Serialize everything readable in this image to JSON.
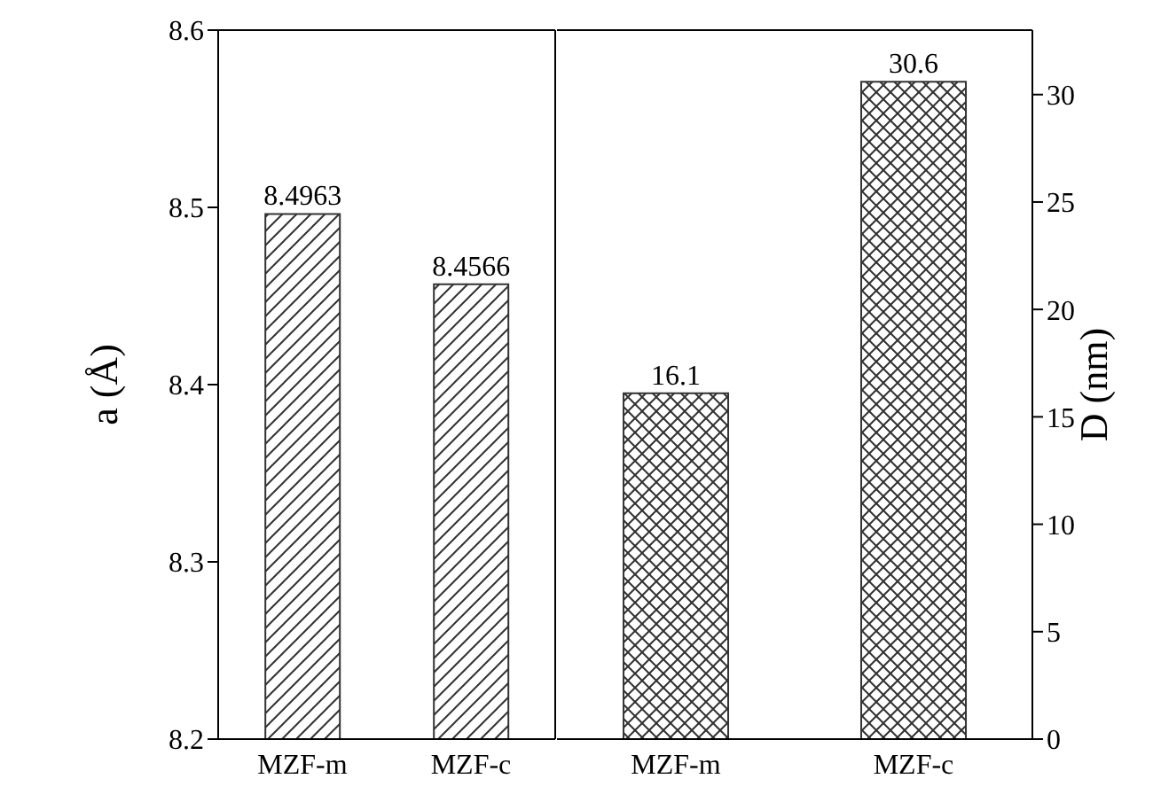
{
  "chart_data": [
    {
      "type": "bar",
      "ylabel": "a (Å)",
      "categories": [
        "MZF-m",
        "MZF-c"
      ],
      "series": [
        {
          "color": "#333333",
          "values": [
            8.4963,
            8.4566
          ]
        }
      ],
      "ylim": [
        8.2,
        8.6
      ],
      "yticks": [
        8.2,
        8.3,
        8.4,
        8.5,
        8.6
      ],
      "data_labels": true
    },
    {
      "type": "bar",
      "y2label": "D (nm)",
      "categories": [
        "MZF-m",
        "MZF-c"
      ],
      "series": [
        {
          "color": "#333333",
          "axis": "y2",
          "values": [
            16.1,
            30.6
          ]
        }
      ],
      "y2lim": [
        0,
        33
      ],
      "y2ticks": [
        0,
        5,
        10,
        15,
        20,
        25,
        30
      ],
      "data_labels": true
    }
  ]
}
